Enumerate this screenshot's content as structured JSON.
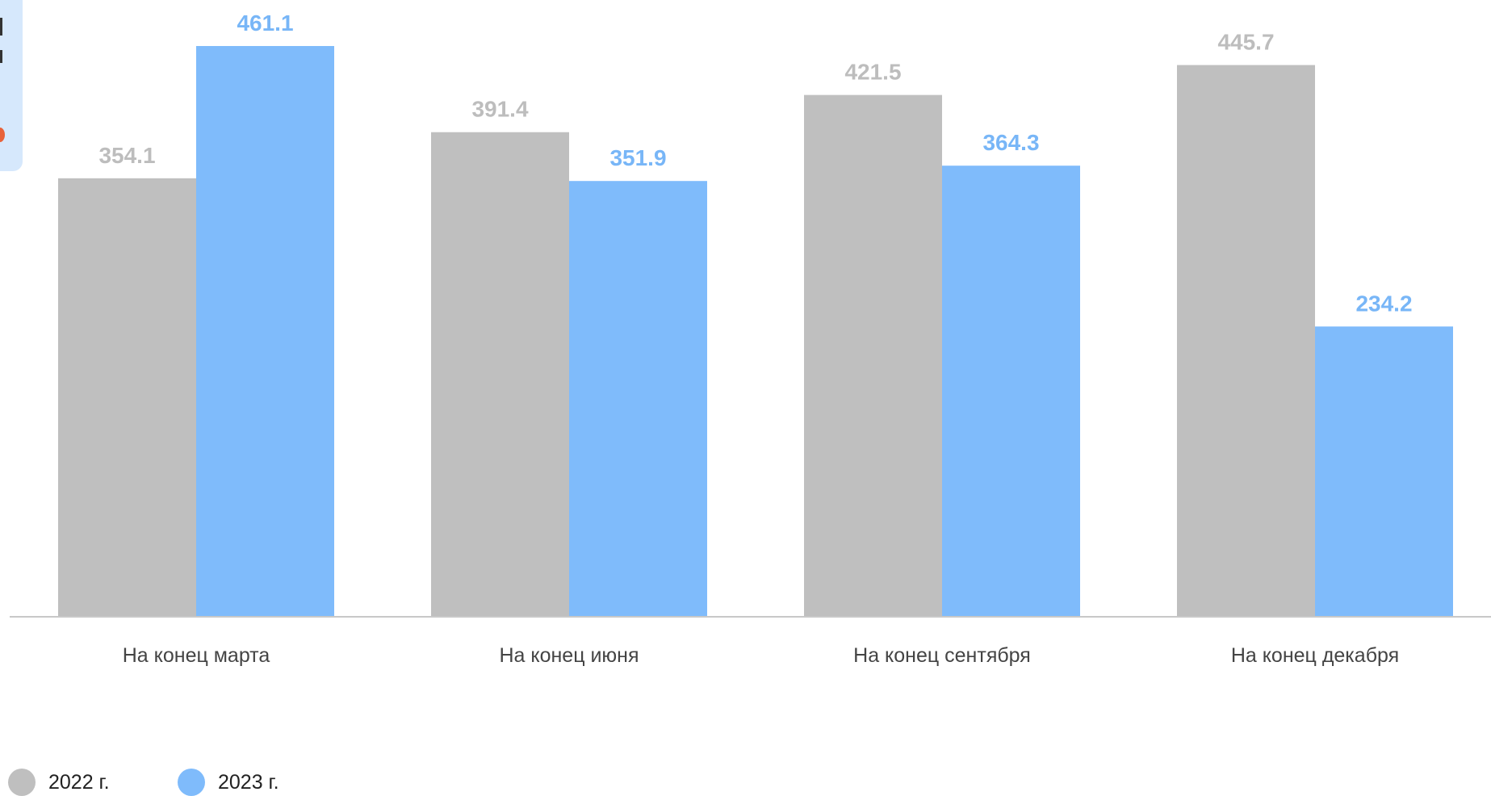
{
  "chart_data": {
    "type": "bar",
    "categories": [
      "На конец марта",
      "На конец июня",
      "На конец сентября",
      "На конец декабря"
    ],
    "series": [
      {
        "name": "2022 г.",
        "values": [
          354.1,
          391.4,
          421.5,
          445.7
        ],
        "color": "#bfbfbf",
        "label_color": "#bdbdbd"
      },
      {
        "name": "2023 г.",
        "values": [
          461.1,
          351.9,
          364.3,
          234.2
        ],
        "color": "#7fbbfb",
        "label_color": "#78b6f7"
      }
    ],
    "ylim": [
      0,
      550
    ],
    "grid": false,
    "legend_position": "bottom-left",
    "axis_color": "#c8c8c8",
    "tick_label_color": "#444444"
  }
}
